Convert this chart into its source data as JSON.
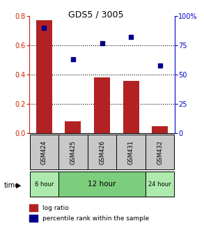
{
  "title": "GDS5 / 3005",
  "samples": [
    "GSM424",
    "GSM425",
    "GSM426",
    "GSM431",
    "GSM432"
  ],
  "log_ratio": [
    0.77,
    0.08,
    0.38,
    0.36,
    0.05
  ],
  "percentile_rank": [
    90,
    63,
    77,
    82,
    58
  ],
  "bar_color": "#B22222",
  "dot_color": "#00008B",
  "ylim_left": [
    0,
    0.8
  ],
  "ylim_right": [
    0,
    100
  ],
  "yticks_left": [
    0,
    0.2,
    0.4,
    0.6,
    0.8
  ],
  "yticks_right": [
    0,
    25,
    50,
    75,
    100
  ],
  "ytick_labels_right": [
    "0",
    "25",
    "50",
    "75",
    "100%"
  ],
  "grid_vals": [
    0.2,
    0.4,
    0.6
  ],
  "time_groups": [
    {
      "label": "6 hour",
      "indices": [
        0
      ],
      "color": "#AEEAAE"
    },
    {
      "label": "12 hour",
      "indices": [
        1,
        2,
        3
      ],
      "color": "#7CCD7C"
    },
    {
      "label": "24 hour",
      "indices": [
        4
      ],
      "color": "#AEEAAE"
    }
  ],
  "xlabel_time": "time",
  "legend_log_ratio": "log ratio",
  "legend_percentile": "percentile rank within the sample",
  "left_axis_color": "#CC2200",
  "right_axis_color": "#0000CC",
  "sample_box_color": "#C8C8C8",
  "bar_width": 0.55
}
